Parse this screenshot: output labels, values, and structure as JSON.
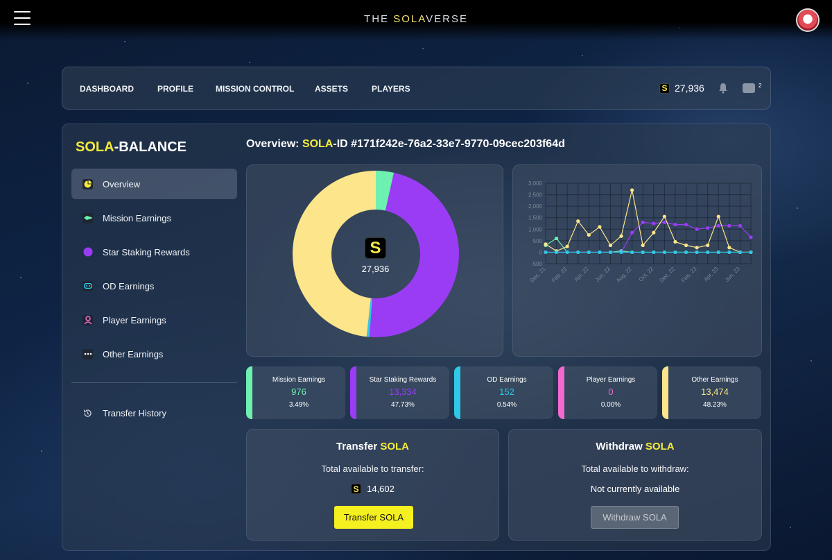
{
  "header": {
    "brand_prefix": "THE ",
    "brand_accent": "SOLA",
    "brand_suffix": "VERSE"
  },
  "nav": {
    "items": [
      "DASHBOARD",
      "PROFILE",
      "MISSION CONTROL",
      "ASSETS",
      "PLAYERS"
    ],
    "balance_icon": "S",
    "balance": "27,936",
    "wallet_count": "2"
  },
  "sidebar": {
    "title_accent": "SOLA",
    "title_rest": "-BALANCE",
    "items": [
      {
        "label": "Overview",
        "icon": "pie-icon"
      },
      {
        "label": "Mission Earnings",
        "icon": "rocket-icon"
      },
      {
        "label": "Star Staking Rewards",
        "icon": "planet-icon"
      },
      {
        "label": "OD Earnings",
        "icon": "gamepad-icon"
      },
      {
        "label": "Player Earnings",
        "icon": "player-icon"
      },
      {
        "label": "Other Earnings",
        "icon": "more-icon"
      }
    ],
    "history_label": "Transfer History"
  },
  "overview": {
    "prefix": "Overview: ",
    "accent": "SOLA",
    "suffix": "-ID #171f242e-76a2-33e7-9770-09cec203f64d"
  },
  "donut": {
    "center_icon": "S",
    "center_value": "27,936",
    "colors": {
      "mission": "#6ef0b0",
      "staking": "#9b3cf5",
      "od": "#2fc8e6",
      "player": "#f26ad0",
      "other": "#fce58a"
    }
  },
  "chart_data": {
    "type": "line",
    "x": [
      "Dec, 21",
      "Jan, 22",
      "Feb, 22",
      "Mar, 22",
      "Apr, 22",
      "May, 22",
      "Jun, 22",
      "Jul, 22",
      "Aug, 22",
      "Sep, 22",
      "Oct, 22",
      "Nov, 22",
      "Dec, 22",
      "Jan, 23",
      "Feb, 23",
      "Mar, 23",
      "Apr, 23",
      "May, 23",
      "Jun, 23",
      "Jul, 23"
    ],
    "x_tick_labels": [
      "Dec, 21",
      "Feb, 22",
      "Apr, 22",
      "Jun, 22",
      "Aug, 22",
      "Oct, 22",
      "Dec, 22",
      "Feb, 23",
      "Apr, 23",
      "Jun, 23"
    ],
    "y_ticks": [
      "3,000",
      "2,500",
      "2,000",
      "1,500",
      "1,000",
      "500",
      "0",
      "-500"
    ],
    "ylim": [
      -500,
      3000
    ],
    "grid": true,
    "series": [
      {
        "color": "#6ef0b0",
        "values": [
          300,
          600,
          0,
          0,
          0,
          0,
          0,
          50,
          0,
          0,
          0,
          0,
          0,
          0,
          0,
          0,
          0,
          0,
          0,
          0
        ]
      },
      {
        "color": "#9b3cf5",
        "values": [
          0,
          0,
          0,
          0,
          0,
          0,
          0,
          0,
          850,
          1300,
          1250,
          1300,
          1200,
          1200,
          1000,
          1050,
          1150,
          1150,
          1150,
          650
        ]
      },
      {
        "color": "#fce58a",
        "values": [
          350,
          50,
          250,
          1350,
          750,
          1100,
          300,
          700,
          2700,
          300,
          850,
          1550,
          450,
          300,
          200,
          300,
          1550,
          200,
          0,
          0
        ]
      },
      {
        "color": "#2fc8e6",
        "values": [
          0,
          0,
          0,
          0,
          0,
          0,
          0,
          0,
          0,
          0,
          0,
          0,
          0,
          0,
          0,
          0,
          0,
          0,
          0,
          0
        ]
      }
    ]
  },
  "stats": [
    {
      "label": "Mission Earnings",
      "value": "976",
      "pct": "3.49%",
      "color": "#6ef0b0",
      "share": 3.49
    },
    {
      "label": "Star Staking Rewards",
      "value": "13,334",
      "pct": "47.73%",
      "color": "#9b3cf5",
      "share": 47.73
    },
    {
      "label": "OD Earnings",
      "value": "152",
      "pct": "0.54%",
      "color": "#2fc8e6",
      "share": 0.54
    },
    {
      "label": "Player Earnings",
      "value": "0",
      "pct": "0.00%",
      "color": "#f26ad0",
      "share": 0.0
    },
    {
      "label": "Other Earnings",
      "value": "13,474",
      "pct": "48.23%",
      "color": "#fce58a",
      "share": 48.23
    }
  ],
  "transfer": {
    "title_prefix": "Transfer ",
    "title_accent": "SOLA",
    "subtitle": "Total available to transfer:",
    "amount_icon": "S",
    "amount": "14,602",
    "button": "Transfer SOLA"
  },
  "withdraw": {
    "title_prefix": "Withdraw ",
    "title_accent": "SOLA",
    "subtitle": "Total available to withdraw:",
    "status": "Not currently available",
    "button": "Withdraw SOLA"
  }
}
